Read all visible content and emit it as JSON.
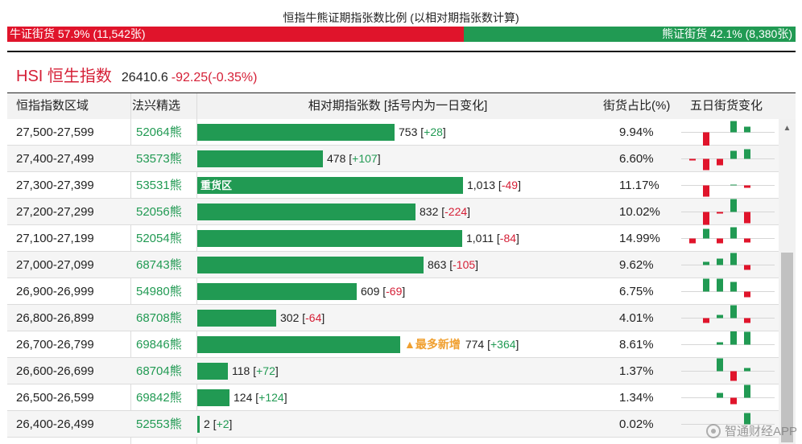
{
  "header": {
    "title": "恒指牛熊证期指张数比例 (以相对期指张数计算)",
    "bull_label": "牛证街货 57.9% (11,542张)",
    "bear_label": "熊证街货 42.1% (8,380张)",
    "bull_fraction": 0.579
  },
  "index": {
    "name": "HSI 恒生指数",
    "value": "26410.6",
    "change": "-92.25(-0.35%)"
  },
  "table": {
    "headers": {
      "range": "恒指指数区域",
      "code": "法兴精选",
      "relative": "相对期指张数 [括号内为一日变化]",
      "percent": "街货占比(%)",
      "five_day": "五日街货变化"
    },
    "rows": [
      {
        "range": "27,500-27,599",
        "code": "52064熊",
        "value": 753,
        "value_text": "753",
        "delta": "+28",
        "tag": "",
        "label": "",
        "percent": "9.94%",
        "spark": [
          0,
          -18,
          0,
          14,
          7
        ]
      },
      {
        "range": "27,400-27,499",
        "code": "53573熊",
        "value": 478,
        "value_text": "478",
        "delta": "+107",
        "tag": "",
        "label": "",
        "percent": "6.60%",
        "spark": [
          -2,
          -14,
          -8,
          10,
          12
        ]
      },
      {
        "range": "27,300-27,399",
        "code": "53531熊",
        "value": 1013,
        "value_text": "1,013",
        "delta": "-49",
        "tag": "",
        "label": "重货区",
        "percent": "11.17%",
        "spark": [
          0,
          -14,
          0,
          1,
          -3
        ]
      },
      {
        "range": "27,200-27,299",
        "code": "52056熊",
        "value": 832,
        "value_text": "832",
        "delta": "-224",
        "tag": "",
        "label": "",
        "percent": "10.02%",
        "spark": [
          0,
          -16,
          -2,
          16,
          -14
        ]
      },
      {
        "range": "27,100-27,199",
        "code": "52054熊",
        "value": 1011,
        "value_text": "1,011",
        "delta": "-84",
        "tag": "",
        "label": "",
        "percent": "14.99%",
        "spark": [
          -6,
          12,
          -6,
          14,
          -5
        ]
      },
      {
        "range": "27,000-27,099",
        "code": "68743熊",
        "value": 863,
        "value_text": "863",
        "delta": "-105",
        "tag": "",
        "label": "",
        "percent": "9.62%",
        "spark": [
          0,
          4,
          8,
          15,
          -6
        ]
      },
      {
        "range": "26,900-26,999",
        "code": "54980熊",
        "value": 609,
        "value_text": "609",
        "delta": "-69",
        "tag": "",
        "label": "",
        "percent": "6.75%",
        "spark": [
          0,
          16,
          16,
          12,
          -7
        ]
      },
      {
        "range": "26,800-26,899",
        "code": "68708熊",
        "value": 302,
        "value_text": "302",
        "delta": "-64",
        "tag": "",
        "label": "",
        "percent": "4.01%",
        "spark": [
          0,
          -6,
          4,
          16,
          -6
        ]
      },
      {
        "range": "26,700-26,799",
        "code": "69846熊",
        "value": 774,
        "value_text": "774",
        "delta": "+364",
        "tag": "▲最多新增",
        "label": "",
        "percent": "8.61%",
        "spark": [
          0,
          0,
          3,
          18,
          16
        ]
      },
      {
        "range": "26,600-26,699",
        "code": "68704熊",
        "value": 118,
        "value_text": "118",
        "delta": "+72",
        "tag": "",
        "label": "",
        "percent": "1.37%",
        "spark": [
          0,
          0,
          16,
          -12,
          4
        ]
      },
      {
        "range": "26,500-26,599",
        "code": "69842熊",
        "value": 124,
        "value_text": "124",
        "delta": "+124",
        "tag": "",
        "label": "",
        "percent": "1.34%",
        "spark": [
          0,
          0,
          6,
          -8,
          16
        ]
      },
      {
        "range": "26,400-26,499",
        "code": "52553熊",
        "value": 2,
        "value_text": "2",
        "delta": "+2",
        "tag": "",
        "label": "",
        "percent": "0.02%",
        "spark": [
          0,
          0,
          0,
          0,
          14
        ]
      }
    ]
  },
  "watermark": "智通财经APP",
  "colors": {
    "bull": "#e0142b",
    "bear": "#219a53",
    "accent_red": "#d51f36",
    "tag_orange": "#f0a030"
  }
}
